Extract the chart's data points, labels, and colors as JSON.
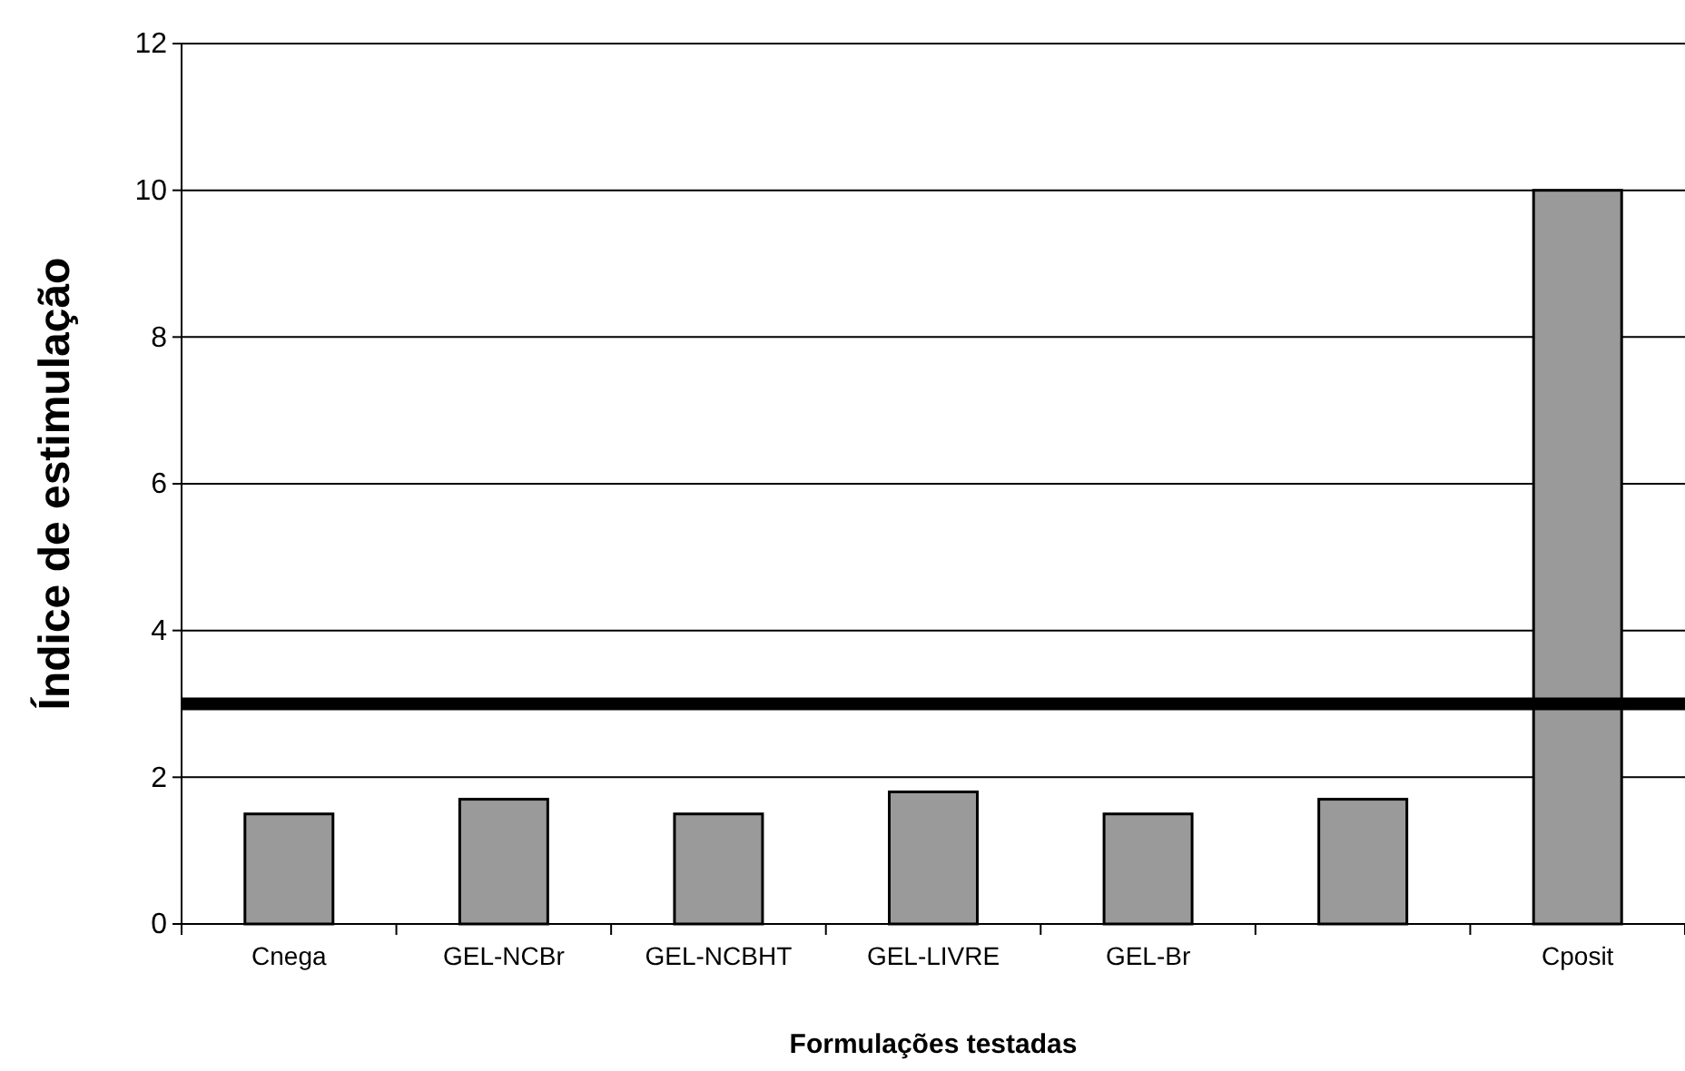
{
  "chart_data": {
    "type": "bar",
    "xlabel": "Formulações testadas",
    "ylabel": "Índice de estimulação",
    "categories": [
      "Cnega",
      "GEL-NCBr",
      "GEL-NCBHT",
      "GEL-LIVRE",
      "GEL-Br",
      null,
      "Cposit"
    ],
    "values": [
      1.5,
      1.7,
      1.5,
      1.8,
      1.5,
      1.7,
      10
    ],
    "color": "#9a9a9a",
    "ylim": [
      0,
      12
    ],
    "yticks": [
      0,
      2,
      4,
      6,
      8,
      10,
      12
    ],
    "grid": "y",
    "ref_lines": [
      {
        "axis": "y",
        "value": 3,
        "color": "#000000"
      }
    ]
  }
}
